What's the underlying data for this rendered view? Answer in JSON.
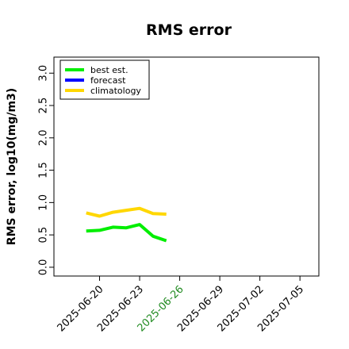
{
  "chart_data": {
    "type": "line",
    "title": "RMS error",
    "xlabel": "",
    "ylabel": "RMS error, log10(mg/m3)",
    "ylim": [
      -0.05,
      3.15
    ],
    "yticks": [
      0.0,
      0.5,
      1.0,
      1.5,
      2.0,
      2.5,
      3.0
    ],
    "ytick_labels": [
      "0.0",
      "0.5",
      "1.0",
      "1.5",
      "2.0",
      "2.5",
      "3.0"
    ],
    "xlim": [
      "2025-06-17",
      "2025-07-06"
    ],
    "xticks": [
      "2025-06-20",
      "2025-06-23",
      "2025-06-26",
      "2025-06-29",
      "2025-07-02",
      "2025-07-05"
    ],
    "xtick_labels": [
      "2025-06-20",
      "2025-06-23",
      "2025-06-26",
      "2025-06-29",
      "2025-07-02",
      "2025-07-05"
    ],
    "xtick_highlight": "2025-06-26",
    "xtick_highlight_color": "#228B22",
    "grid": false,
    "legend_position": "top-left",
    "series": [
      {
        "name": "best est.",
        "color": "#00ee00",
        "x": [
          "2025-06-19",
          "2025-06-20",
          "2025-06-21",
          "2025-06-22",
          "2025-06-23",
          "2025-06-24",
          "2025-06-25"
        ],
        "values": [
          0.56,
          0.57,
          0.62,
          0.61,
          0.66,
          0.48,
          0.41
        ]
      },
      {
        "name": "forecast",
        "color": "#0000ff",
        "x": [],
        "values": []
      },
      {
        "name": "climatology",
        "color": "#ffd700",
        "x": [
          "2025-06-19",
          "2025-06-20",
          "2025-06-21",
          "2025-06-22",
          "2025-06-23",
          "2025-06-24",
          "2025-06-25"
        ],
        "values": [
          0.84,
          0.79,
          0.85,
          0.88,
          0.91,
          0.83,
          0.82
        ]
      }
    ]
  }
}
